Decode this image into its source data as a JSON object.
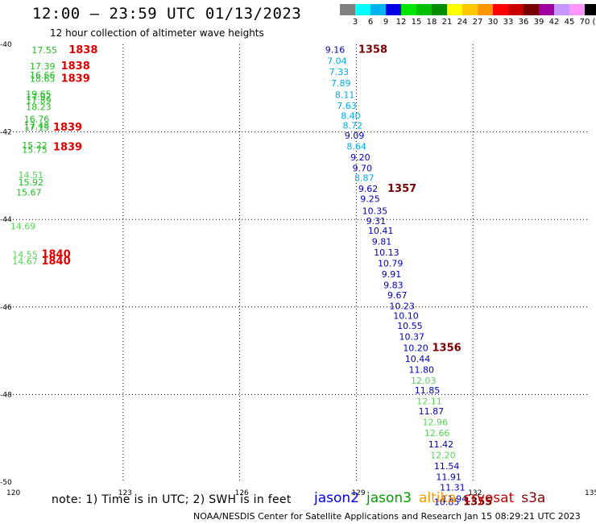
{
  "header": {
    "title": "12:00 — 23:59 UTC 01/13/2023",
    "subtitle": "12 hour collection of altimeter wave heights"
  },
  "color_scale": {
    "unit": "(ft)",
    "ticks": [
      "3",
      "6",
      "9",
      "12",
      "15",
      "18",
      "21",
      "24",
      "27",
      "30",
      "33",
      "36",
      "39",
      "42",
      "45",
      "70"
    ],
    "colors": [
      "#808080",
      "#00ffff",
      "#00b4f0",
      "#0000e6",
      "#00e600",
      "#00c000",
      "#008c00",
      "#ffff00",
      "#ffc800",
      "#ff9600",
      "#ff0000",
      "#c80000",
      "#780000",
      "#a000a0",
      "#c896ff",
      "#ff96ff",
      "#000000"
    ]
  },
  "axes": {
    "lon_ticks": [
      "120",
      "123",
      "126",
      "129",
      "132",
      "135"
    ],
    "lat_ticks": [
      "-40",
      "-42",
      "-44",
      "-46",
      "-48",
      "-50"
    ]
  },
  "map_data": {
    "extent": {
      "lon": [
        120,
        135
      ],
      "lat": [
        -50,
        -40
      ]
    },
    "labels": [
      {
        "t": "17.55",
        "lon": 120.65,
        "lat": -40.13,
        "c": "#1fbe1f"
      },
      {
        "t": "1838",
        "lon": 121.6,
        "lat": -40.13,
        "c": "#e00000",
        "b": true
      },
      {
        "t": "17.39",
        "lon": 120.6,
        "lat": -40.5,
        "c": "#1fbe1f"
      },
      {
        "t": "1838",
        "lon": 121.4,
        "lat": -40.5,
        "c": "#e00000",
        "b": true
      },
      {
        "t": "16.66",
        "lon": 120.6,
        "lat": -40.7,
        "c": "#1fbe1f"
      },
      {
        "t": "18.65",
        "lon": 120.6,
        "lat": -40.78,
        "c": "#1fbe1f"
      },
      {
        "t": "1839",
        "lon": 121.4,
        "lat": -40.78,
        "c": "#e00000",
        "b": true
      },
      {
        "t": "19.65",
        "lon": 120.5,
        "lat": -41.13,
        "c": "#1fbe1f"
      },
      {
        "t": "17.97",
        "lon": 120.5,
        "lat": -41.2,
        "c": "#1fbe1f"
      },
      {
        "t": "17.89",
        "lon": 120.5,
        "lat": -41.28,
        "c": "#1fbe1f"
      },
      {
        "t": "18.23",
        "lon": 120.5,
        "lat": -41.43,
        "c": "#1fbe1f"
      },
      {
        "t": "16.76",
        "lon": 120.45,
        "lat": -41.7,
        "c": "#1fbe1f"
      },
      {
        "t": "17.48",
        "lon": 120.45,
        "lat": -41.85,
        "c": "#1fbe1f"
      },
      {
        "t": "17.15",
        "lon": 120.45,
        "lat": -41.9,
        "c": "#1fbe1f"
      },
      {
        "t": "1839",
        "lon": 121.2,
        "lat": -41.9,
        "c": "#e00000",
        "b": true
      },
      {
        "t": "15.22",
        "lon": 120.4,
        "lat": -42.3,
        "c": "#1fbe1f"
      },
      {
        "t": "15.75",
        "lon": 120.4,
        "lat": -42.4,
        "c": "#1fbe1f"
      },
      {
        "t": "1839",
        "lon": 121.2,
        "lat": -42.35,
        "c": "#e00000",
        "b": true
      },
      {
        "t": "14.51",
        "lon": 120.3,
        "lat": -42.98,
        "c": "#5ad25a"
      },
      {
        "t": "15.92",
        "lon": 120.3,
        "lat": -43.15,
        "c": "#1fbe1f"
      },
      {
        "t": "15.67",
        "lon": 120.25,
        "lat": -43.38,
        "c": "#1fbe1f"
      },
      {
        "t": "14.69",
        "lon": 120.1,
        "lat": -44.15,
        "c": "#5ad25a"
      },
      {
        "t": "14.55",
        "lon": 120.15,
        "lat": -44.8,
        "c": "#5ad25a"
      },
      {
        "t": "14.67",
        "lon": 120.15,
        "lat": -44.95,
        "c": "#5ad25a"
      },
      {
        "t": "1840",
        "lon": 120.9,
        "lat": -44.8,
        "c": "#e00000",
        "b": true
      },
      {
        "t": "1840",
        "lon": 120.9,
        "lat": -44.95,
        "c": "#e00000",
        "b": true
      },
      {
        "t": "9.16",
        "lon": 128.2,
        "lat": -40.12,
        "c": "#0000b4"
      },
      {
        "t": "1358",
        "lon": 129.05,
        "lat": -40.12,
        "c": "#780000",
        "b": true
      },
      {
        "t": "7.04",
        "lon": 128.25,
        "lat": -40.38,
        "c": "#00aae6"
      },
      {
        "t": "7.33",
        "lon": 128.3,
        "lat": -40.63,
        "c": "#00aae6"
      },
      {
        "t": "7.89",
        "lon": 128.35,
        "lat": -40.88,
        "c": "#00aae6"
      },
      {
        "t": "8.11",
        "lon": 128.45,
        "lat": -41.15,
        "c": "#00aae6"
      },
      {
        "t": "7.63",
        "lon": 128.5,
        "lat": -41.4,
        "c": "#00aae6"
      },
      {
        "t": "8.40",
        "lon": 128.6,
        "lat": -41.63,
        "c": "#00aae6"
      },
      {
        "t": "8.72",
        "lon": 128.65,
        "lat": -41.85,
        "c": "#00aae6"
      },
      {
        "t": "9.09",
        "lon": 128.7,
        "lat": -42.08,
        "c": "#0000b4"
      },
      {
        "t": "8.64",
        "lon": 128.75,
        "lat": -42.33,
        "c": "#00aae6"
      },
      {
        "t": "9.20",
        "lon": 128.85,
        "lat": -42.58,
        "c": "#0000b4"
      },
      {
        "t": "9.70",
        "lon": 128.9,
        "lat": -42.83,
        "c": "#0000b4"
      },
      {
        "t": "8.87",
        "lon": 128.95,
        "lat": -43.05,
        "c": "#00aae6"
      },
      {
        "t": "9.62",
        "lon": 129.05,
        "lat": -43.3,
        "c": "#0000b4"
      },
      {
        "t": "1357",
        "lon": 129.8,
        "lat": -43.3,
        "c": "#780000",
        "b": true
      },
      {
        "t": "9.25",
        "lon": 129.1,
        "lat": -43.53,
        "c": "#0000b4"
      },
      {
        "t": "10.35",
        "lon": 129.15,
        "lat": -43.8,
        "c": "#0000b4"
      },
      {
        "t": "9.31",
        "lon": 129.25,
        "lat": -44.03,
        "c": "#0000b4"
      },
      {
        "t": "10.41",
        "lon": 129.3,
        "lat": -44.25,
        "c": "#0000b4"
      },
      {
        "t": "9.81",
        "lon": 129.4,
        "lat": -44.5,
        "c": "#0000b4"
      },
      {
        "t": "10.13",
        "lon": 129.45,
        "lat": -44.75,
        "c": "#0000b4"
      },
      {
        "t": "10.79",
        "lon": 129.55,
        "lat": -45.0,
        "c": "#0000b4"
      },
      {
        "t": "9.91",
        "lon": 129.65,
        "lat": -45.25,
        "c": "#0000b4"
      },
      {
        "t": "9.83",
        "lon": 129.7,
        "lat": -45.5,
        "c": "#0000b4"
      },
      {
        "t": "9.67",
        "lon": 129.8,
        "lat": -45.73,
        "c": "#0000b4"
      },
      {
        "t": "10.23",
        "lon": 129.85,
        "lat": -45.98,
        "c": "#0000b4"
      },
      {
        "t": "10.10",
        "lon": 129.95,
        "lat": -46.2,
        "c": "#0000b4"
      },
      {
        "t": "10.55",
        "lon": 130.05,
        "lat": -46.43,
        "c": "#0000b4"
      },
      {
        "t": "10.37",
        "lon": 130.1,
        "lat": -46.68,
        "c": "#0000b4"
      },
      {
        "t": "10.20",
        "lon": 130.2,
        "lat": -46.93,
        "c": "#0000b4"
      },
      {
        "t": "1356",
        "lon": 130.95,
        "lat": -46.93,
        "c": "#780000",
        "b": true
      },
      {
        "t": "10.44",
        "lon": 130.25,
        "lat": -47.18,
        "c": "#0000b4"
      },
      {
        "t": "11.80",
        "lon": 130.35,
        "lat": -47.43,
        "c": "#0000b4"
      },
      {
        "t": "12.03",
        "lon": 130.4,
        "lat": -47.68,
        "c": "#5ad25a"
      },
      {
        "t": "11.85",
        "lon": 130.5,
        "lat": -47.9,
        "c": "#0000b4"
      },
      {
        "t": "12.11",
        "lon": 130.55,
        "lat": -48.15,
        "c": "#5ad25a"
      },
      {
        "t": "11.87",
        "lon": 130.6,
        "lat": -48.38,
        "c": "#0000b4"
      },
      {
        "t": "12.96",
        "lon": 130.7,
        "lat": -48.63,
        "c": "#5ad25a"
      },
      {
        "t": "12.66",
        "lon": 130.75,
        "lat": -48.88,
        "c": "#5ad25a"
      },
      {
        "t": "11.42",
        "lon": 130.85,
        "lat": -49.13,
        "c": "#0000b4"
      },
      {
        "t": "12.20",
        "lon": 130.9,
        "lat": -49.38,
        "c": "#5ad25a"
      },
      {
        "t": "11.54",
        "lon": 131.0,
        "lat": -49.63,
        "c": "#0000b4"
      },
      {
        "t": "11.91",
        "lon": 131.05,
        "lat": -49.88,
        "c": "#0000b4"
      },
      {
        "t": "11.31",
        "lon": 131.15,
        "lat": -50.12,
        "c": "#0000b4"
      },
      {
        "t": "11.94",
        "lon": 131.2,
        "lat": -50.38,
        "c": "#0000b4"
      },
      {
        "t": "10.85",
        "lon": 131.0,
        "lat": -50.45,
        "c": "#0000b4"
      },
      {
        "t": "1355",
        "lon": 131.75,
        "lat": -50.45,
        "c": "#780000",
        "b": true
      }
    ]
  },
  "note": "note: 1) Time is in UTC; 2) SWH is in feet",
  "legend": [
    {
      "name": "jason2",
      "color": "#0000e6"
    },
    {
      "name": "jason3",
      "color": "#00a000"
    },
    {
      "name": "altika",
      "color": "#ff9600"
    },
    {
      "name": "cryosat",
      "color": "#c80000"
    },
    {
      "name": "s3a",
      "color": "#800000"
    }
  ],
  "footer": "NOAA/NESDIS Center for Satellite Applications and Research    Jan 15 08:29:21 UTC 2023"
}
